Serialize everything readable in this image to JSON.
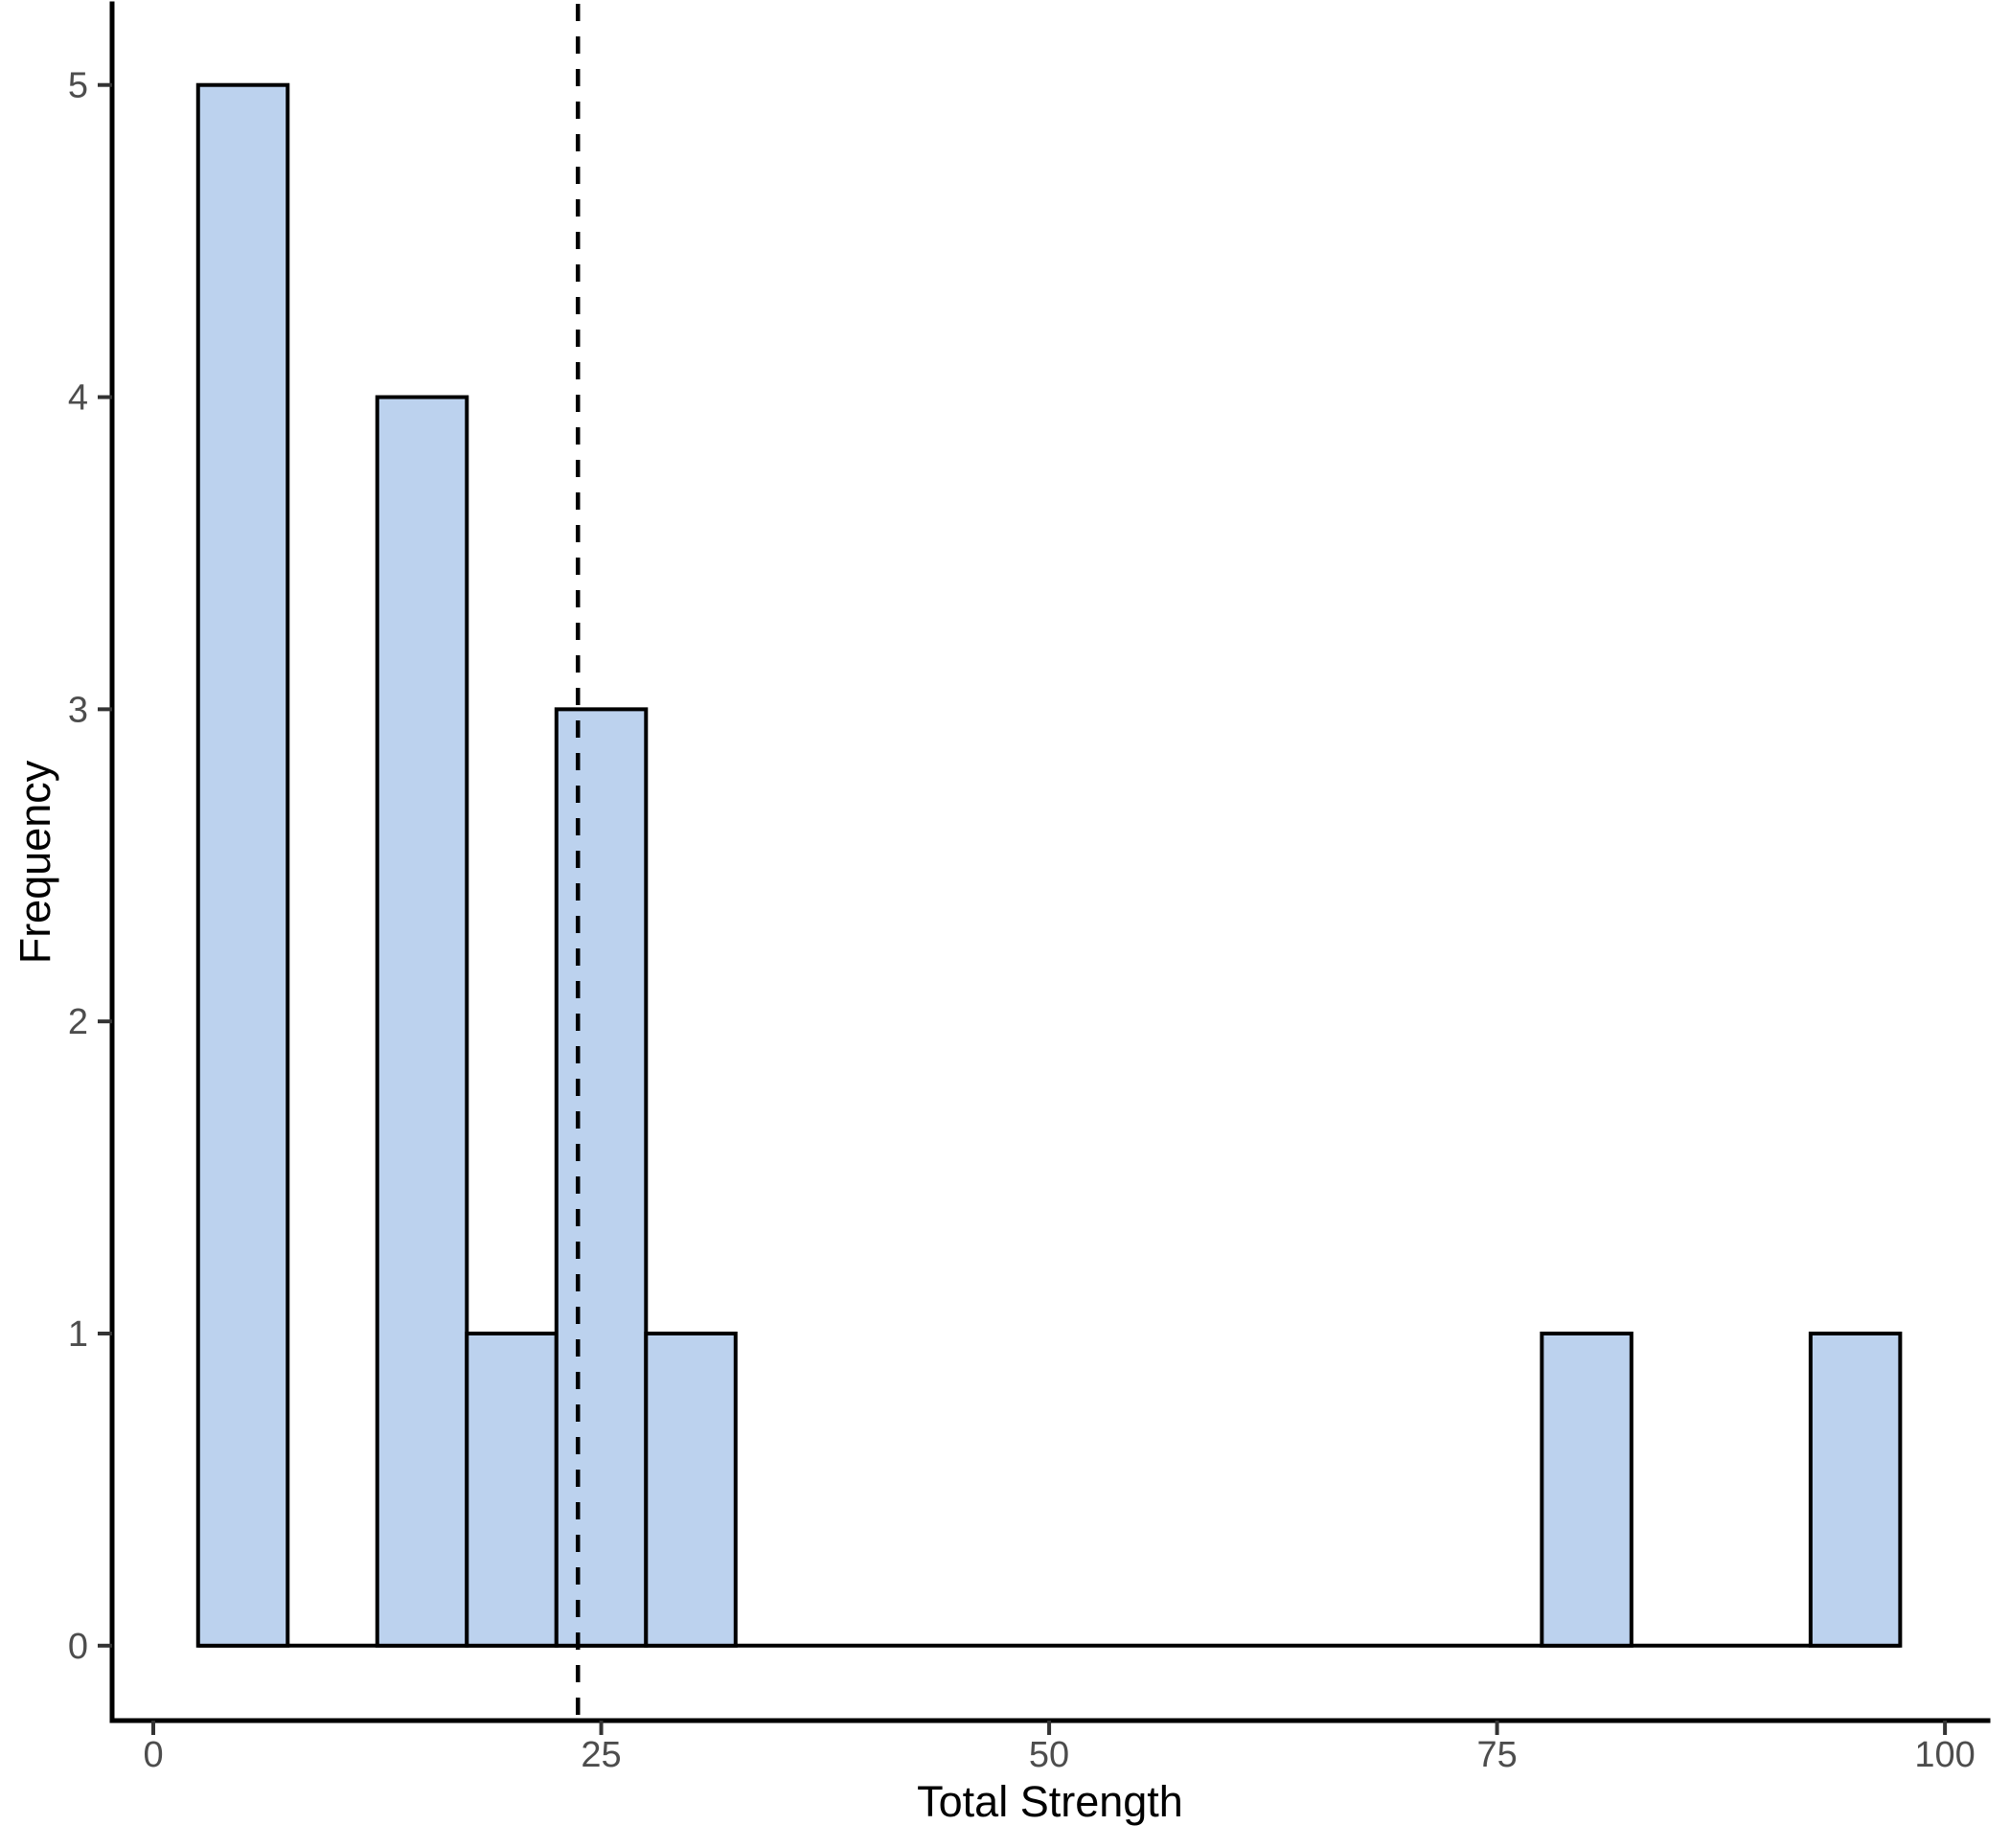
{
  "chart_data": {
    "type": "bar",
    "variant": "histogram",
    "title": "",
    "xlabel": "Total Strength",
    "ylabel": "Frequency",
    "x_ticks": [
      "0",
      "25",
      "50",
      "75",
      "100"
    ],
    "x_tick_values": [
      0,
      25,
      50,
      75,
      100
    ],
    "y_ticks": [
      "0",
      "1",
      "2",
      "3",
      "4",
      "5"
    ],
    "y_tick_values": [
      0,
      1,
      2,
      3,
      4,
      5
    ],
    "xlim": [
      -2.3,
      102.4
    ],
    "ylim": [
      -0.24,
      5.26
    ],
    "bin_width": 5,
    "bins": [
      {
        "x0": 2.5,
        "x1": 7.5,
        "count": 5
      },
      {
        "x0": 7.5,
        "x1": 12.5,
        "count": 0
      },
      {
        "x0": 12.5,
        "x1": 17.5,
        "count": 4
      },
      {
        "x0": 17.5,
        "x1": 22.5,
        "count": 1
      },
      {
        "x0": 22.5,
        "x1": 27.5,
        "count": 3
      },
      {
        "x0": 27.5,
        "x1": 32.5,
        "count": 1
      },
      {
        "x0": 32.5,
        "x1": 37.5,
        "count": 0
      },
      {
        "x0": 37.5,
        "x1": 42.5,
        "count": 0
      },
      {
        "x0": 42.5,
        "x1": 47.5,
        "count": 0
      },
      {
        "x0": 47.5,
        "x1": 52.5,
        "count": 0
      },
      {
        "x0": 52.5,
        "x1": 57.5,
        "count": 0
      },
      {
        "x0": 57.5,
        "x1": 62.5,
        "count": 0
      },
      {
        "x0": 62.5,
        "x1": 67.5,
        "count": 0
      },
      {
        "x0": 67.5,
        "x1": 72.5,
        "count": 0
      },
      {
        "x0": 72.5,
        "x1": 77.5,
        "count": 0
      },
      {
        "x0": 77.5,
        "x1": 82.5,
        "count": 1
      },
      {
        "x0": 82.5,
        "x1": 87.5,
        "count": 0
      },
      {
        "x0": 87.5,
        "x1": 92.5,
        "count": 0
      },
      {
        "x0": 92.5,
        "x1": 97.5,
        "count": 1
      }
    ],
    "vline": {
      "x": 23.7,
      "style": "dashed"
    },
    "grid": false,
    "legend": "none",
    "colors": {
      "bar_fill": "#BCD2EE",
      "bar_stroke": "#000000",
      "axis_line": "#000000",
      "tick_mark": "#333333",
      "tick_label": "#4D4D4D",
      "title": "#000000",
      "vline": "#000000",
      "background": "#FFFFFF"
    }
  }
}
